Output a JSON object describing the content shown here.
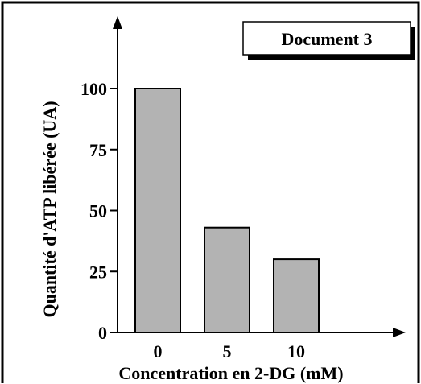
{
  "badge": {
    "label": "Document 3"
  },
  "chart_data": {
    "type": "bar",
    "title": "",
    "xlabel": "Concentration en 2-DG (mM)",
    "ylabel": "Quantité d'ATP libérée (UA)",
    "categories": [
      "0",
      "5",
      "10"
    ],
    "values": [
      100,
      43,
      30
    ],
    "yticks": [
      "0",
      "25",
      "50",
      "75",
      "100"
    ],
    "ylim": [
      0,
      100
    ],
    "bar_color": "#b3b3b3",
    "grid": false
  }
}
